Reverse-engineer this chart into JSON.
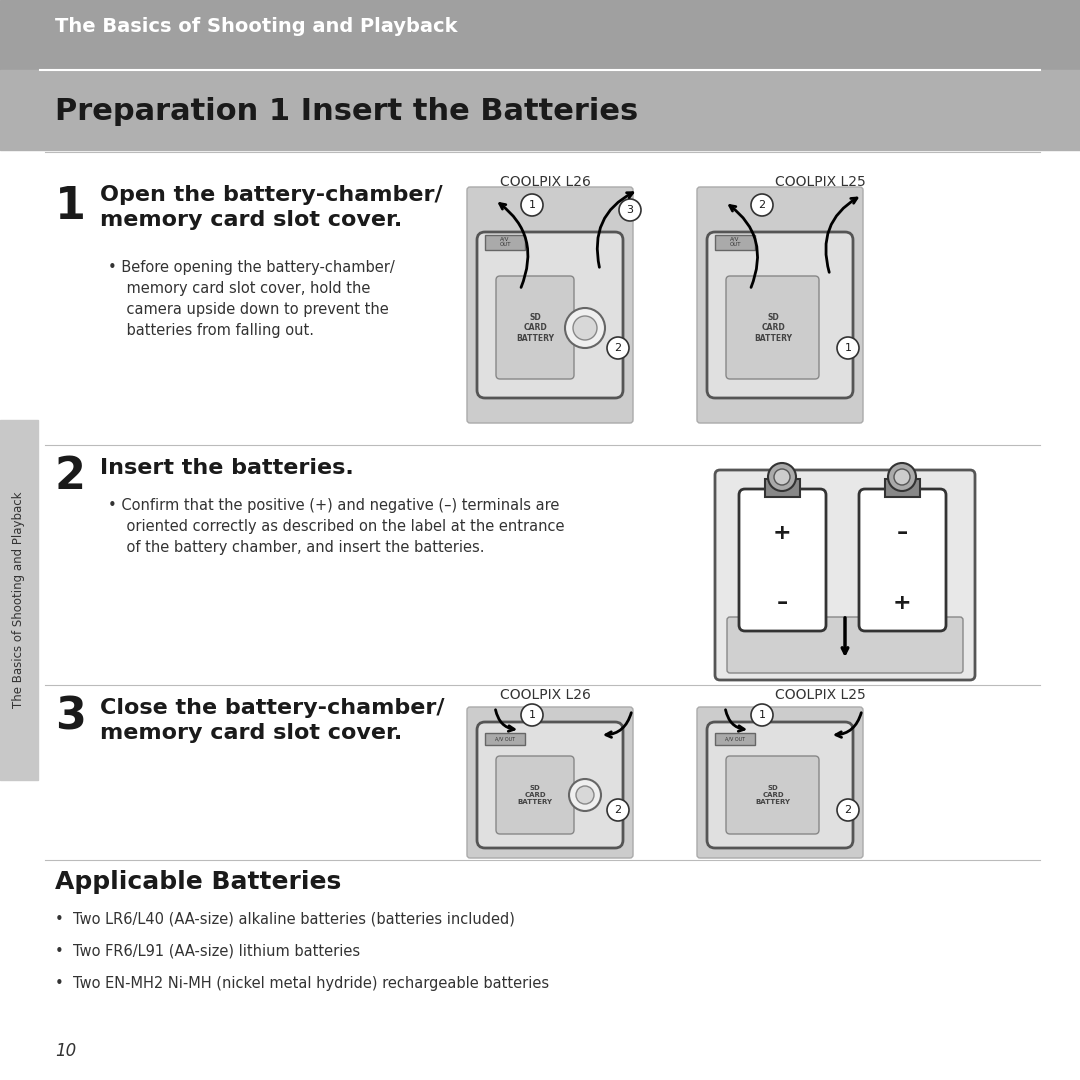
{
  "bg_color": "#ffffff",
  "header_bg": "#a0a0a0",
  "header_text": "The Basics of Shooting and Playback",
  "header_text_color": "#ffffff",
  "title": "Preparation 1 Insert the Batteries",
  "title_color": "#1a1a1a",
  "sidebar_bg": "#c8c8c8",
  "sidebar_text": "The Basics of Shooting and Playback",
  "sidebar_text_color": "#333333",
  "step1_num": "1",
  "step1_head": "Open the battery-chamber/\nmemory card slot cover.",
  "step1_bullet": "Before opening the battery-chamber/\nmemory card slot cover, hold the\ncamera upside down to prevent the\nbatteries from falling out.",
  "step1_label1": "COOLPIX L26",
  "step1_label2": "COOLPIX L25",
  "step2_num": "2",
  "step2_head": "Insert the batteries.",
  "step2_bullet": "Confirm that the positive (+) and negative (–) terminals are\noriented correctly as described on the label at the entrance\nof the battery chamber, and insert the batteries.",
  "step3_num": "3",
  "step3_head": "Close the battery-chamber/\nmemory card slot cover.",
  "step3_label1": "COOLPIX L26",
  "step3_label2": "COOLPIX L25",
  "section_head": "Applicable Batteries",
  "bullets": [
    "Two LR6/L40 (AA-size) alkaline batteries (batteries included)",
    "Two FR6/L91 (AA-size) lithium batteries",
    "Two EN-MH2 Ni-MH (nickel metal hydride) rechargeable batteries"
  ],
  "page_num": "10",
  "line_color": "#bbbbbb",
  "step_num_color": "#1a1a1a",
  "body_text_color": "#333333",
  "small_text_color": "#444444"
}
